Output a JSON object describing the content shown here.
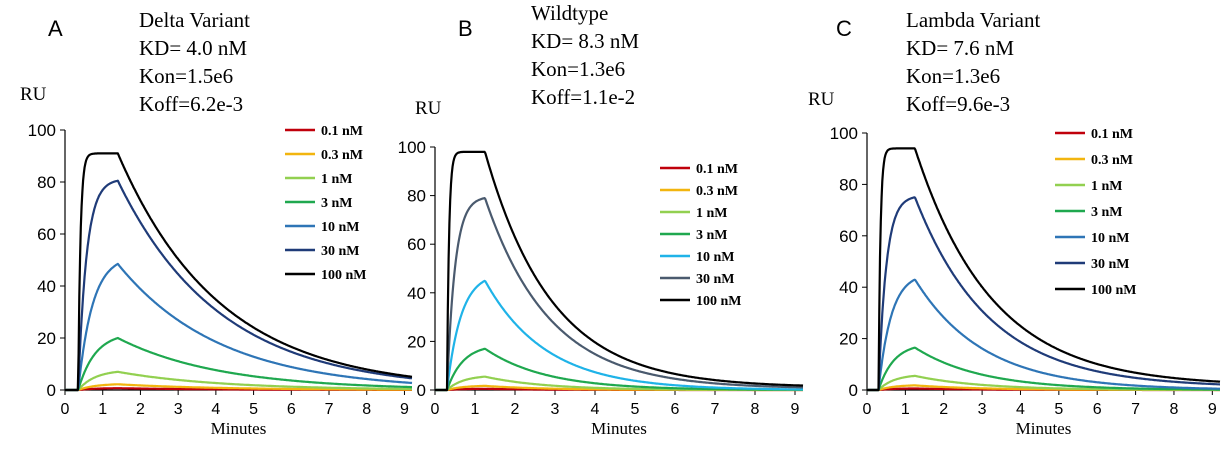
{
  "chart_data": [
    {
      "type": "line",
      "panel_letter": "A",
      "title": "Delta Variant",
      "annotations": [
        "KD= 4.0 nM",
        "Kon=1.5e6",
        "Koff=6.2e-3"
      ],
      "ylabel": "RU",
      "xlabel": "Minutes",
      "xlim": [
        0,
        9.2
      ],
      "ylim": [
        0,
        100
      ],
      "xticks": [
        "0",
        "1",
        "2",
        "3",
        "4",
        "5",
        "6",
        "7",
        "8",
        "9"
      ],
      "yticks": [
        "0",
        "20",
        "40",
        "60",
        "80",
        "100"
      ],
      "legend_position": "top-right",
      "grid": false,
      "t_start": 0.35,
      "t_end": 9.2,
      "series": [
        {
          "name": "0.1 nM",
          "color": "#c0000b",
          "t_switch": 1.4,
          "peak": 0.7,
          "tau_on": 0.45,
          "koff_per_min": 0.37,
          "offset": 0
        },
        {
          "name": "0.3 nM",
          "color": "#f2b50f",
          "t_switch": 1.4,
          "peak": 2.2,
          "tau_on": 0.45,
          "koff_per_min": 0.37,
          "offset": 0
        },
        {
          "name": "1 nM",
          "color": "#92d050",
          "t_switch": 1.4,
          "peak": 7,
          "tau_on": 0.45,
          "koff_per_min": 0.37,
          "offset": 0
        },
        {
          "name": "3 nM",
          "color": "#1fa84f",
          "t_switch": 1.4,
          "peak": 20,
          "tau_on": 0.45,
          "koff_per_min": 0.37,
          "offset": 0
        },
        {
          "name": "10 nM",
          "color": "#2e75b6",
          "t_switch": 1.4,
          "peak": 48.5,
          "tau_on": 0.38,
          "koff_per_min": 0.37,
          "offset": 0
        },
        {
          "name": "30 nM",
          "color": "#1f3b78",
          "t_switch": 1.4,
          "peak": 80.5,
          "tau_on": 0.22,
          "koff_per_min": 0.37,
          "offset": 0
        },
        {
          "name": "100 nM",
          "color": "#000000",
          "t_switch": 1.4,
          "peak": 91,
          "tau_on": 0.06,
          "koff_per_min": 0.37,
          "offset": 0
        }
      ]
    },
    {
      "type": "line",
      "panel_letter": "B",
      "title": "Wildtype",
      "annotations": [
        "KD= 8.3 nM",
        "Kon=1.3e6",
        "Koff=1.1e-2"
      ],
      "ylabel": "RU",
      "xlabel": "Minutes",
      "xlim": [
        0,
        9.2
      ],
      "ylim": [
        0,
        100
      ],
      "xticks": [
        "0",
        "1",
        "2",
        "3",
        "4",
        "5",
        "6",
        "7",
        "8",
        "9"
      ],
      "yticks": [
        "0",
        "20",
        "40",
        "60",
        "80",
        "100"
      ],
      "legend_position": "top-right",
      "grid": false,
      "t_start": 0.3,
      "t_end": 9.2,
      "series": [
        {
          "name": "0.1 nM",
          "color": "#c0000b",
          "t_switch": 1.25,
          "peak": 0.5,
          "tau_on": 0.4,
          "koff_per_min": 0.66,
          "offset": 0
        },
        {
          "name": "0.3 nM",
          "color": "#f2b50f",
          "t_switch": 1.25,
          "peak": 1.7,
          "tau_on": 0.4,
          "koff_per_min": 0.66,
          "offset": 0
        },
        {
          "name": "1 nM",
          "color": "#92d050",
          "t_switch": 1.25,
          "peak": 5.5,
          "tau_on": 0.4,
          "koff_per_min": 0.66,
          "offset": 0
        },
        {
          "name": "3 nM",
          "color": "#1fa84f",
          "t_switch": 1.25,
          "peak": 17,
          "tau_on": 0.4,
          "koff_per_min": 0.66,
          "offset": 0
        },
        {
          "name": "10 nM",
          "color": "#1fb3e8",
          "t_switch": 1.25,
          "peak": 45,
          "tau_on": 0.35,
          "koff_per_min": 0.66,
          "offset": 0
        },
        {
          "name": "30 nM",
          "color": "#4a5a6e",
          "t_switch": 1.25,
          "peak": 79,
          "tau_on": 0.2,
          "koff_per_min": 0.62,
          "offset": 0.5
        },
        {
          "name": "100 nM",
          "color": "#000000",
          "t_switch": 1.25,
          "peak": 98,
          "tau_on": 0.05,
          "koff_per_min": 0.6,
          "offset": 1
        }
      ]
    },
    {
      "type": "line",
      "panel_letter": "C",
      "title": "Lambda Variant",
      "annotations": [
        "KD= 7.6 nM",
        "Kon=1.3e6",
        "Koff=9.6e-3"
      ],
      "ylabel": "RU",
      "xlabel": "Minutes",
      "xlim": [
        0,
        9.2
      ],
      "ylim": [
        0,
        100
      ],
      "xticks": [
        "0",
        "1",
        "2",
        "3",
        "4",
        "5",
        "6",
        "7",
        "8",
        "9"
      ],
      "yticks": [
        "0",
        "20",
        "40",
        "60",
        "80",
        "100"
      ],
      "legend_position": "top-right",
      "grid": false,
      "t_start": 0.3,
      "t_end": 9.2,
      "series": [
        {
          "name": "0.1 nM",
          "color": "#c0000b",
          "t_switch": 1.25,
          "peak": 0.6,
          "tau_on": 0.4,
          "koff_per_min": 0.58,
          "offset": 0
        },
        {
          "name": "0.3 nM",
          "color": "#f2b50f",
          "t_switch": 1.25,
          "peak": 1.8,
          "tau_on": 0.4,
          "koff_per_min": 0.58,
          "offset": 0
        },
        {
          "name": "1 nM",
          "color": "#92d050",
          "t_switch": 1.25,
          "peak": 5.5,
          "tau_on": 0.4,
          "koff_per_min": 0.58,
          "offset": 0
        },
        {
          "name": "3 nM",
          "color": "#1fa84f",
          "t_switch": 1.25,
          "peak": 16.5,
          "tau_on": 0.4,
          "koff_per_min": 0.58,
          "offset": 0
        },
        {
          "name": "10 nM",
          "color": "#2e75b6",
          "t_switch": 1.25,
          "peak": 43,
          "tau_on": 0.33,
          "koff_per_min": 0.56,
          "offset": 0
        },
        {
          "name": "30 nM",
          "color": "#1f3b78",
          "t_switch": 1.25,
          "peak": 75,
          "tau_on": 0.2,
          "koff_per_min": 0.52,
          "offset": 1
        },
        {
          "name": "100 nM",
          "color": "#000000",
          "t_switch": 1.25,
          "peak": 94,
          "tau_on": 0.05,
          "koff_per_min": 0.5,
          "offset": 1.5
        }
      ]
    }
  ]
}
